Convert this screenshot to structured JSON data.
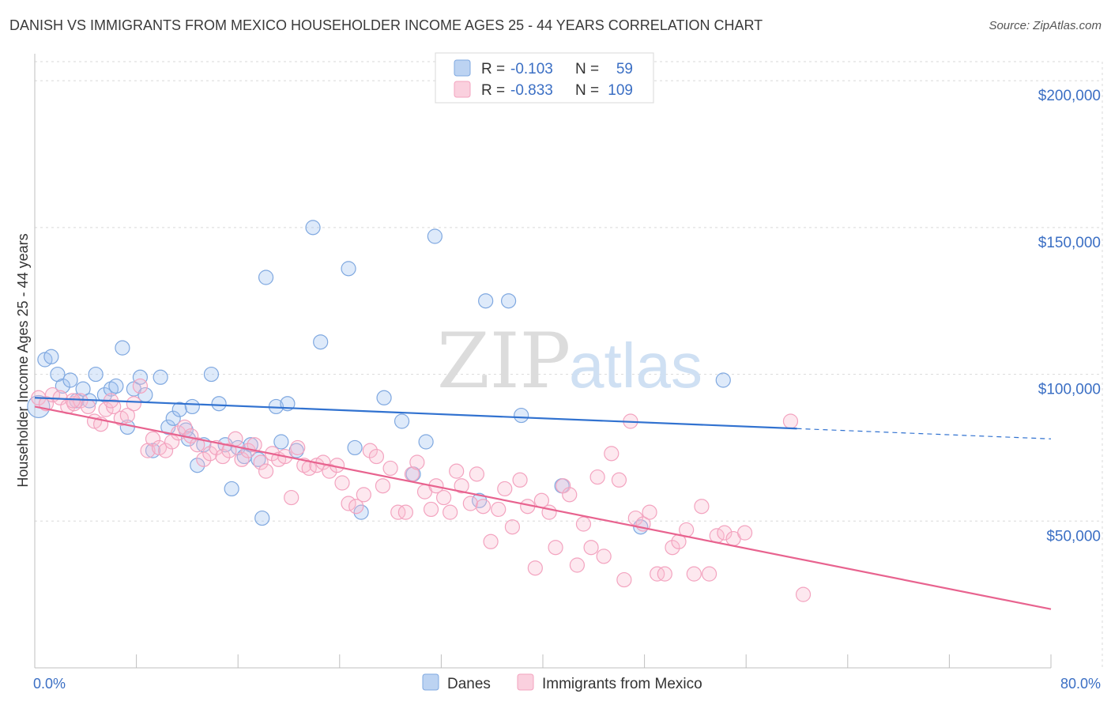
{
  "title": "DANISH VS IMMIGRANTS FROM MEXICO HOUSEHOLDER INCOME AGES 25 - 44 YEARS CORRELATION CHART",
  "source": "Source: ZipAtlas.com",
  "watermark": {
    "zip": "ZIP",
    "atlas": "atlas"
  },
  "chart_data": {
    "type": "scatter",
    "ylabel": "Householder Income Ages 25 - 44 years",
    "xlim": [
      0,
      80
    ],
    "ylim": [
      0,
      210000
    ],
    "x_tick_labels": [
      "0.0%",
      "80.0%"
    ],
    "y_ticks": [
      50000,
      100000,
      150000,
      200000
    ],
    "y_tick_labels": [
      "$50,000",
      "$100,000",
      "$150,000",
      "$200,000"
    ],
    "grid": true,
    "legend_position": "top-center",
    "series": [
      {
        "name": "Danes",
        "color": "#7fa8e0",
        "line_color": "#3172d0",
        "R": "-0.103",
        "N": "59",
        "trend": {
          "x0": 0,
          "y0": 92000,
          "x1": 60,
          "y1": 81500,
          "dash_to_x": 80,
          "dash_to_y": 78000
        },
        "points": [
          [
            0.3,
            89000
          ],
          [
            0.8,
            105000
          ],
          [
            1.3,
            106000
          ],
          [
            1.8,
            100000
          ],
          [
            2.2,
            96000
          ],
          [
            2.8,
            98000
          ],
          [
            3.3,
            91000
          ],
          [
            3.8,
            95000
          ],
          [
            4.3,
            91000
          ],
          [
            4.8,
            100000
          ],
          [
            5.5,
            93000
          ],
          [
            6.0,
            95000
          ],
          [
            6.4,
            96000
          ],
          [
            6.9,
            109000
          ],
          [
            7.3,
            82000
          ],
          [
            7.8,
            95000
          ],
          [
            8.3,
            99000
          ],
          [
            8.7,
            93000
          ],
          [
            9.3,
            74000
          ],
          [
            9.9,
            99000
          ],
          [
            10.5,
            82000
          ],
          [
            10.9,
            85000
          ],
          [
            11.4,
            88000
          ],
          [
            11.9,
            81000
          ],
          [
            12.4,
            89000
          ],
          [
            12.8,
            69000
          ],
          [
            13.3,
            76000
          ],
          [
            13.9,
            100000
          ],
          [
            14.5,
            90000
          ],
          [
            15.0,
            76000
          ],
          [
            15.5,
            61000
          ],
          [
            16.0,
            75000
          ],
          [
            16.5,
            72000
          ],
          [
            17.0,
            76000
          ],
          [
            17.6,
            71000
          ],
          [
            17.9,
            51000
          ],
          [
            18.2,
            133000
          ],
          [
            19.0,
            89000
          ],
          [
            19.4,
            77000
          ],
          [
            19.9,
            90000
          ],
          [
            20.6,
            74000
          ],
          [
            21.9,
            150000
          ],
          [
            22.5,
            111000
          ],
          [
            24.7,
            136000
          ],
          [
            25.7,
            53000
          ],
          [
            25.2,
            75000
          ],
          [
            27.5,
            92000
          ],
          [
            28.9,
            84000
          ],
          [
            29.8,
            66000
          ],
          [
            30.8,
            77000
          ],
          [
            31.5,
            147000
          ],
          [
            35.5,
            125000
          ],
          [
            37.3,
            125000
          ],
          [
            38.3,
            86000
          ],
          [
            35.0,
            57000
          ],
          [
            41.5,
            62000
          ],
          [
            47.7,
            48000
          ],
          [
            54.2,
            98000
          ],
          [
            12.1,
            78000
          ]
        ]
      },
      {
        "name": "Immigrants from Mexico",
        "color": "#f3a3bf",
        "line_color": "#e8638f",
        "R": "-0.833",
        "N": "109",
        "trend": {
          "x0": 0,
          "y0": 89000,
          "x1": 80,
          "y1": 20000
        },
        "points": [
          [
            0.3,
            92000
          ],
          [
            0.9,
            90000
          ],
          [
            1.4,
            93000
          ],
          [
            2.0,
            92000
          ],
          [
            2.6,
            89000
          ],
          [
            3.1,
            90000
          ],
          [
            3.6,
            91000
          ],
          [
            4.2,
            89000
          ],
          [
            4.7,
            84000
          ],
          [
            5.2,
            83000
          ],
          [
            5.6,
            88000
          ],
          [
            6.2,
            89000
          ],
          [
            6.8,
            85000
          ],
          [
            7.3,
            86000
          ],
          [
            7.8,
            90000
          ],
          [
            8.3,
            96000
          ],
          [
            8.9,
            74000
          ],
          [
            9.3,
            78000
          ],
          [
            9.8,
            75000
          ],
          [
            10.3,
            74000
          ],
          [
            10.8,
            77000
          ],
          [
            11.3,
            80000
          ],
          [
            11.8,
            82000
          ],
          [
            12.3,
            79000
          ],
          [
            12.8,
            76000
          ],
          [
            13.3,
            71000
          ],
          [
            13.8,
            73000
          ],
          [
            14.3,
            75000
          ],
          [
            14.8,
            72000
          ],
          [
            15.3,
            74000
          ],
          [
            15.8,
            78000
          ],
          [
            16.3,
            71000
          ],
          [
            16.8,
            74000
          ],
          [
            17.3,
            76000
          ],
          [
            17.8,
            70000
          ],
          [
            18.2,
            67000
          ],
          [
            18.7,
            73000
          ],
          [
            19.2,
            71000
          ],
          [
            19.7,
            72000
          ],
          [
            20.2,
            58000
          ],
          [
            20.7,
            75000
          ],
          [
            21.2,
            69000
          ],
          [
            21.6,
            68000
          ],
          [
            22.2,
            69000
          ],
          [
            22.7,
            70000
          ],
          [
            23.2,
            67000
          ],
          [
            23.8,
            69000
          ],
          [
            24.2,
            63000
          ],
          [
            24.7,
            56000
          ],
          [
            25.3,
            55000
          ],
          [
            25.9,
            59000
          ],
          [
            26.4,
            74000
          ],
          [
            26.9,
            72000
          ],
          [
            27.4,
            62000
          ],
          [
            28.0,
            68000
          ],
          [
            28.6,
            53000
          ],
          [
            29.2,
            53000
          ],
          [
            29.7,
            66000
          ],
          [
            30.1,
            70000
          ],
          [
            30.7,
            60000
          ],
          [
            31.2,
            54000
          ],
          [
            31.6,
            62000
          ],
          [
            32.2,
            58000
          ],
          [
            32.7,
            53000
          ],
          [
            33.2,
            67000
          ],
          [
            33.6,
            62000
          ],
          [
            34.3,
            56000
          ],
          [
            34.8,
            66000
          ],
          [
            35.3,
            55000
          ],
          [
            35.9,
            43000
          ],
          [
            36.5,
            54000
          ],
          [
            37.0,
            61000
          ],
          [
            37.6,
            48000
          ],
          [
            38.2,
            64000
          ],
          [
            38.8,
            55000
          ],
          [
            39.4,
            34000
          ],
          [
            39.9,
            57000
          ],
          [
            40.5,
            53000
          ],
          [
            41.0,
            41000
          ],
          [
            41.6,
            62000
          ],
          [
            42.1,
            59000
          ],
          [
            42.7,
            35000
          ],
          [
            43.2,
            49000
          ],
          [
            43.8,
            41000
          ],
          [
            44.3,
            65000
          ],
          [
            44.8,
            38000
          ],
          [
            45.4,
            73000
          ],
          [
            46.0,
            64000
          ],
          [
            46.4,
            30000
          ],
          [
            46.9,
            84000
          ],
          [
            47.3,
            51000
          ],
          [
            47.9,
            49000
          ],
          [
            48.4,
            53000
          ],
          [
            49.0,
            32000
          ],
          [
            49.6,
            32000
          ],
          [
            50.2,
            41000
          ],
          [
            50.7,
            43000
          ],
          [
            51.3,
            47000
          ],
          [
            51.9,
            32000
          ],
          [
            52.5,
            55000
          ],
          [
            53.1,
            32000
          ],
          [
            53.7,
            45000
          ],
          [
            54.3,
            46000
          ],
          [
            55.0,
            44000
          ],
          [
            55.9,
            46000
          ],
          [
            59.5,
            84000
          ],
          [
            60.5,
            25000
          ],
          [
            3.0,
            91000
          ],
          [
            6.0,
            91000
          ]
        ]
      }
    ]
  },
  "legend": {
    "r_label": "R =",
    "n_label": "N =",
    "items": [
      {
        "name": "Danes",
        "R": "-0.103",
        "N": "59"
      },
      {
        "name": "Immigrants from Mexico",
        "R": "-0.833",
        "N": "109"
      }
    ]
  }
}
